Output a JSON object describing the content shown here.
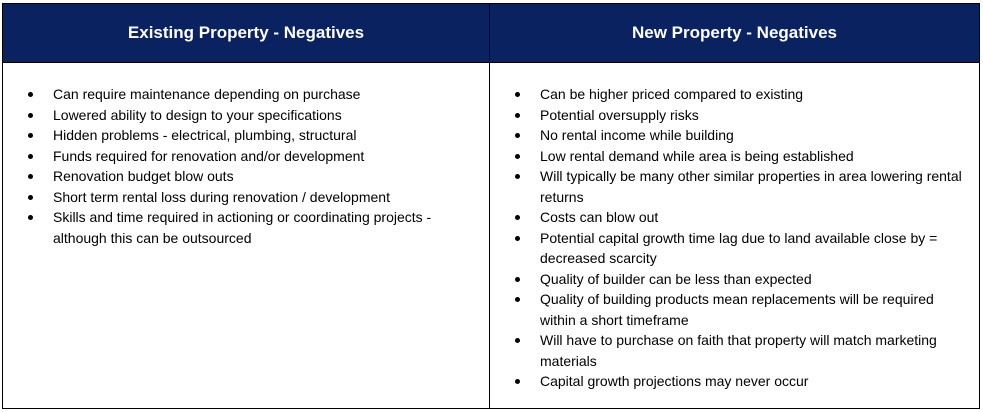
{
  "table": {
    "headers": {
      "existing": "Existing Property - Negatives",
      "new": "New Property - Negatives"
    },
    "existing_items": [
      "Can require maintenance depending on purchase",
      "Lowered ability to design to your specifications",
      "Hidden problems - electrical, plumbing, structural",
      "Funds required for renovation and/or development",
      "Renovation budget blow outs",
      "Short term rental loss during renovation / development",
      "Skills and time required in actioning or coordinating projects - although this can be outsourced"
    ],
    "new_items": [
      "Can be higher priced compared to existing",
      "Potential oversupply risks",
      "No rental income while building",
      "Low rental demand while area is being established",
      "Will typically be many other similar properties in area lowering rental returns",
      "Costs can blow out",
      "Potential capital growth time lag due to land available close by = decreased scarcity",
      "Quality of builder can be less than expected",
      "Quality of building products mean replacements will be required within a short timeframe",
      "Will have to purchase on faith that property will match marketing materials",
      "Capital growth projections may never occur"
    ],
    "colors": {
      "header_background": "#0a2260",
      "header_text": "#ffffff",
      "border": "#000000"
    }
  }
}
